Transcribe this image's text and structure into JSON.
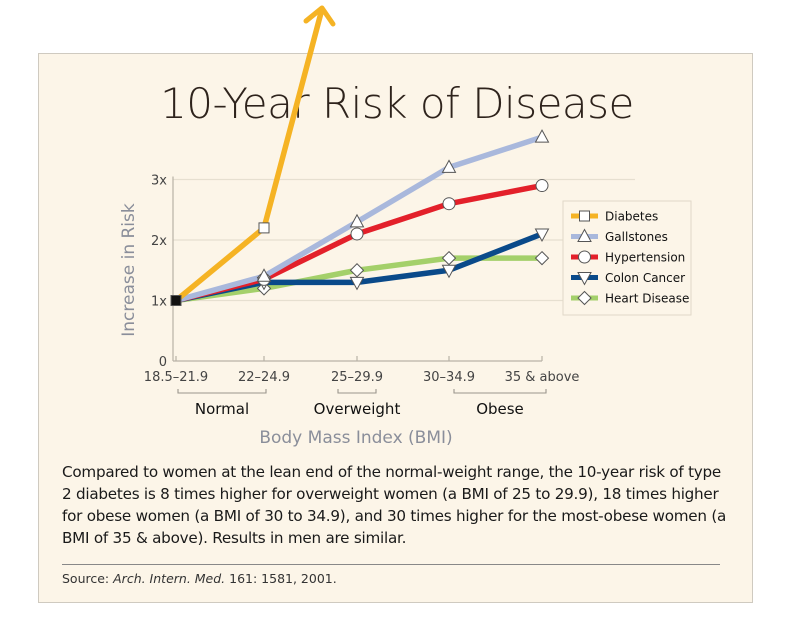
{
  "caption": "Compared to women at the lean end of the normal-weight range, the 10-year risk of type 2 diabetes is 8 times higher for overweight women (a BMI of 25 to 29.9), 18 times higher for obese women (a BMI of 30 to 34.9), and 30 times higher for the most-obese women (a BMI of 35 & above). Results in men are similar.",
  "source": {
    "prefix": "Source: ",
    "journal": "Arch. Intern. Med.",
    "citation": " 161: 1581, 2001."
  },
  "chart_data": {
    "type": "line",
    "title": "10-Year Risk of Disease",
    "xlabel": "Body Mass Index (BMI)",
    "ylabel": "Increase in Risk",
    "categories": [
      "18.5–21.9",
      "22–24.9",
      "25–29.9",
      "30–34.9",
      "35 & above"
    ],
    "yticks": [
      {
        "value": 0,
        "label": "0"
      },
      {
        "value": 1,
        "label": "1x"
      },
      {
        "value": 2,
        "label": "2x"
      },
      {
        "value": 3,
        "label": "3x"
      }
    ],
    "ylim": [
      0,
      3.2
    ],
    "grid": true,
    "legend_position": "right",
    "category_groups": [
      {
        "label": "Normal",
        "from": 0,
        "to": 1
      },
      {
        "label": "Overweight",
        "from": 2,
        "to": 2
      },
      {
        "label": "Obese",
        "from": 3,
        "to": 4
      }
    ],
    "series": [
      {
        "name": "Diabetes",
        "color": "#f5b324",
        "marker": "square",
        "values": [
          1.0,
          2.2,
          null,
          null,
          null
        ],
        "note": "line continues off the top of the chart with an arrow (values exceed axis range)"
      },
      {
        "name": "Gallstones",
        "color": "#a9b8dc",
        "marker": "triangle-up",
        "values": [
          1.0,
          1.4,
          2.3,
          3.2,
          3.7
        ]
      },
      {
        "name": "Hypertension",
        "color": "#e3202a",
        "marker": "circle",
        "values": [
          1.0,
          1.35,
          2.1,
          2.6,
          2.9
        ]
      },
      {
        "name": "Colon Cancer",
        "color": "#0a4a8a",
        "marker": "triangle-down",
        "values": [
          1.0,
          1.3,
          1.3,
          1.5,
          2.1
        ]
      },
      {
        "name": "Heart Disease",
        "color": "#a4d06a",
        "marker": "diamond",
        "values": [
          1.0,
          1.2,
          1.5,
          1.7,
          1.7
        ]
      }
    ]
  }
}
